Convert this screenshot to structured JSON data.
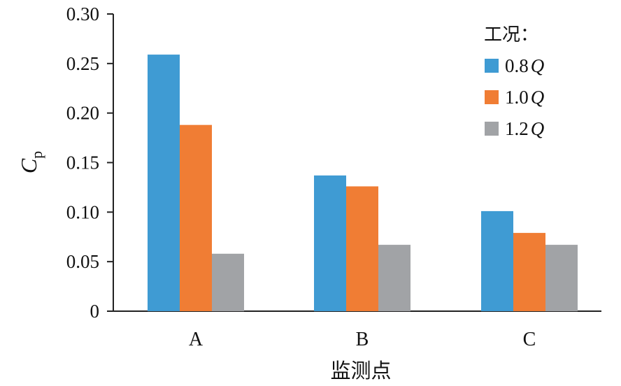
{
  "chart_data": {
    "type": "bar",
    "categories": [
      "A",
      "B",
      "C"
    ],
    "series": [
      {
        "name": "0.8",
        "name_suffix": "Q",
        "color": "#3f9bd3",
        "values": [
          0.259,
          0.137,
          0.101
        ]
      },
      {
        "name": "1.0",
        "name_suffix": "Q",
        "color": "#f07d34",
        "values": [
          0.188,
          0.126,
          0.079
        ]
      },
      {
        "name": "1.2",
        "name_suffix": "Q",
        "color": "#a1a3a6",
        "values": [
          0.058,
          0.067,
          0.067
        ]
      }
    ],
    "y_ticks": [
      "0",
      "0.05",
      "0.10",
      "0.15",
      "0.20",
      "0.25",
      "0.30"
    ],
    "ylim": [
      0,
      0.3
    ],
    "ylabel": "C",
    "ylabel_sub": "p",
    "xlabel": "监测点",
    "legend_title": "工况：",
    "legend_position": "top-right",
    "grid": false
  }
}
